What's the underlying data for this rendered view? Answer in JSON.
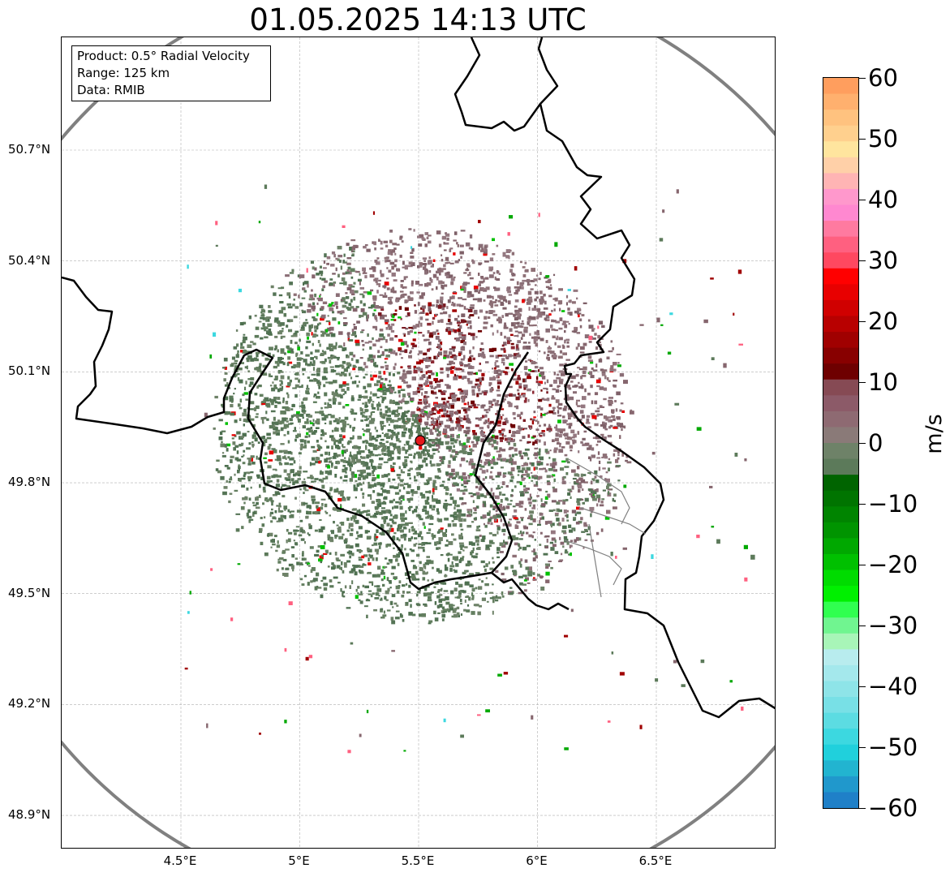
{
  "title": "01.05.2025 14:13 UTC",
  "info_box": {
    "product": "Product: 0.5° Radial Velocity",
    "range": "Range: 125 km",
    "data": "Data: RMIB"
  },
  "axes": {
    "lat_labels": [
      "50.7°N",
      "50.4°N",
      "50.1°N",
      "49.8°N",
      "49.5°N",
      "49.2°N",
      "48.9°N"
    ],
    "lat_values": [
      50.7,
      50.4,
      50.1,
      49.8,
      49.5,
      49.2,
      48.9
    ],
    "lon_labels": [
      "4.5°E",
      "5°E",
      "5.5°E",
      "6°E",
      "6.5°E"
    ],
    "lon_values": [
      4.5,
      5.0,
      5.5,
      6.0,
      6.5
    ],
    "lon_range": [
      4.0,
      7.0
    ],
    "lat_range": [
      48.8,
      51.0
    ],
    "gridlines": true
  },
  "radar": {
    "site_lat": 49.91,
    "site_lon": 5.51,
    "range_km": 125,
    "site_color": "#e31a1c",
    "range_ring_color": "#808080"
  },
  "colorbar": {
    "unit": "m/s",
    "min": -60,
    "max": 60,
    "ticks": [
      "60",
      "50",
      "40",
      "30",
      "20",
      "10",
      "0",
      "−10",
      "−20",
      "−30",
      "−40",
      "−50",
      "−60"
    ],
    "tick_values": [
      60,
      50,
      40,
      30,
      20,
      10,
      0,
      -10,
      -20,
      -30,
      -40,
      -50,
      -60
    ],
    "colors_top_to_bottom": [
      "#ff9e5e",
      "#ffb06e",
      "#ffc27f",
      "#ffd08e",
      "#ffe59e",
      "#ffd0a8",
      "#ffb4b4",
      "#ff98cc",
      "#ff88d0",
      "#ff7aa0",
      "#ff6080",
      "#ff4860",
      "#ff0000",
      "#e80000",
      "#d00000",
      "#b80000",
      "#a00000",
      "#880000",
      "#6e0000",
      "#864a54",
      "#8c5a68",
      "#8e6a72",
      "#8a7a78",
      "#6e8268",
      "#5c7a5a",
      "#006400",
      "#007400",
      "#008400",
      "#009400",
      "#00a800",
      "#00c000",
      "#00dc00",
      "#00f000",
      "#30ff50",
      "#70f590",
      "#a8f5b8",
      "#b8ecee",
      "#a4e8ec",
      "#8ee4e8",
      "#78e0e6",
      "#5cdce2",
      "#3cd8e0",
      "#20d0dc",
      "#22b4d0",
      "#2098cc",
      "#1f80c8"
    ]
  }
}
